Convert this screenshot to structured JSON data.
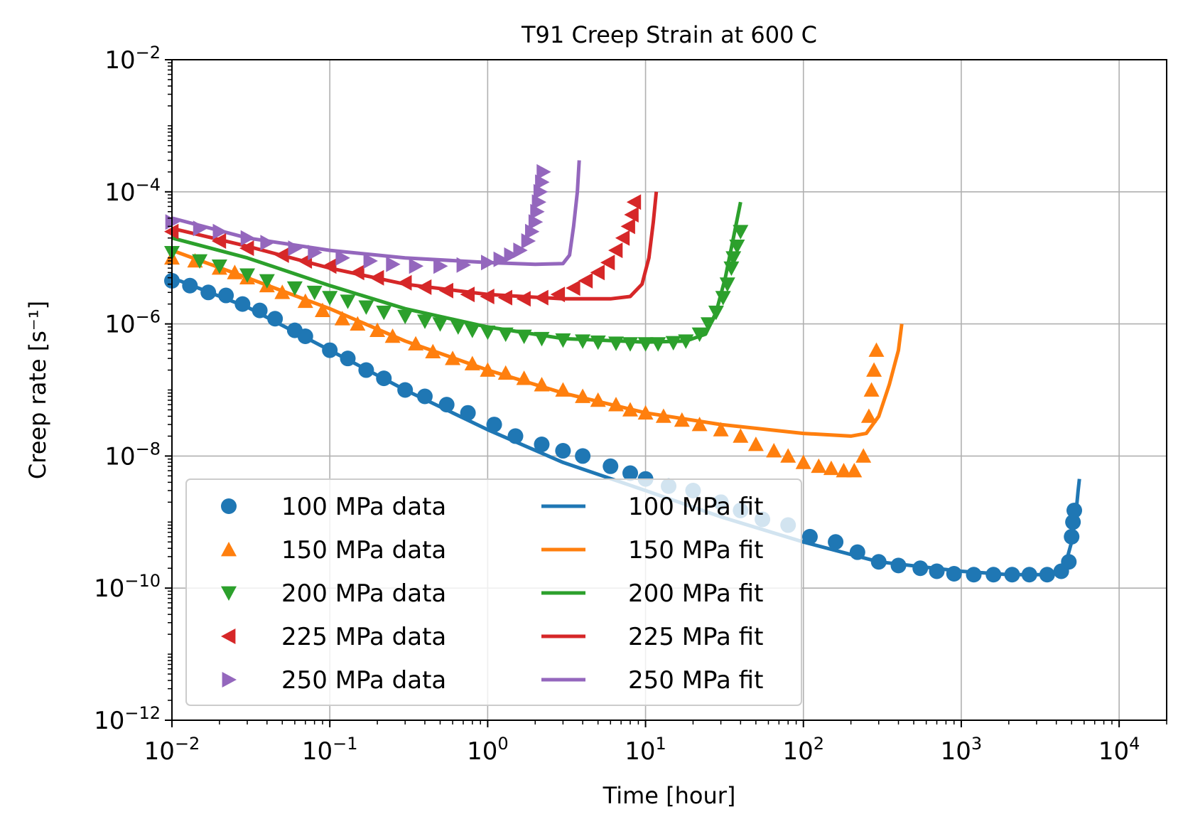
{
  "chart_data": {
    "type": "scatter",
    "title": "T91 Creep Strain at 600 C",
    "xlabel": "Time [hour]",
    "ylabel": "Creep rate [s⁻¹]",
    "xscale": "log",
    "yscale": "log",
    "xlim": [
      0.01,
      20000
    ],
    "ylim": [
      1e-12,
      0.01
    ],
    "grid": true,
    "legend_position": "lower-left",
    "x_ticks": [
      {
        "value": 0.01,
        "base": "10",
        "exp": "−2"
      },
      {
        "value": 0.1,
        "base": "10",
        "exp": "−1"
      },
      {
        "value": 1,
        "base": "10",
        "exp": "0"
      },
      {
        "value": 10,
        "base": "10",
        "exp": "1"
      },
      {
        "value": 100,
        "base": "10",
        "exp": "2"
      },
      {
        "value": 1000,
        "base": "10",
        "exp": "3"
      },
      {
        "value": 10000,
        "base": "10",
        "exp": "4"
      }
    ],
    "y_ticks": [
      {
        "value": 1e-12,
        "base": "10",
        "exp": "−12"
      },
      {
        "value": 1e-10,
        "base": "10",
        "exp": "−10"
      },
      {
        "value": 1e-08,
        "base": "10",
        "exp": "−8"
      },
      {
        "value": 1e-06,
        "base": "10",
        "exp": "−6"
      },
      {
        "value": 0.0001,
        "base": "10",
        "exp": "−4"
      },
      {
        "value": 0.01,
        "base": "10",
        "exp": "−2"
      }
    ],
    "series": [
      {
        "name": "100 MPa data",
        "kind": "data",
        "marker": "circle",
        "color": "#1f77b4",
        "points": [
          [
            0.01,
            4.5e-06
          ],
          [
            0.013,
            3.8e-06
          ],
          [
            0.017,
            3e-06
          ],
          [
            0.022,
            2.7e-06
          ],
          [
            0.028,
            2e-06
          ],
          [
            0.036,
            1.6e-06
          ],
          [
            0.045,
            1.2e-06
          ],
          [
            0.06,
            8e-07
          ],
          [
            0.07,
            6.5e-07
          ],
          [
            0.1,
            4e-07
          ],
          [
            0.13,
            3e-07
          ],
          [
            0.17,
            2e-07
          ],
          [
            0.22,
            1.5e-07
          ],
          [
            0.3,
            1e-07
          ],
          [
            0.4,
            8e-08
          ],
          [
            0.55,
            6e-08
          ],
          [
            0.75,
            4.5e-08
          ],
          [
            1.1,
            3e-08
          ],
          [
            1.5,
            2e-08
          ],
          [
            2.2,
            1.5e-08
          ],
          [
            3,
            1.2e-08
          ],
          [
            4,
            1e-08
          ],
          [
            6,
            7e-09
          ],
          [
            8,
            5.5e-09
          ],
          [
            10,
            4.5e-09
          ],
          [
            14,
            3.5e-09
          ],
          [
            20,
            3e-09
          ],
          [
            30,
            2e-09
          ],
          [
            40,
            1.5e-09
          ],
          [
            55,
            1.1e-09
          ],
          [
            80,
            9e-10
          ],
          [
            110,
            6e-10
          ],
          [
            160,
            5e-10
          ],
          [
            220,
            3.5e-10
          ],
          [
            300,
            2.5e-10
          ],
          [
            400,
            2.2e-10
          ],
          [
            550,
            2e-10
          ],
          [
            700,
            1.8e-10
          ],
          [
            900,
            1.65e-10
          ],
          [
            1200,
            1.6e-10
          ],
          [
            1600,
            1.6e-10
          ],
          [
            2100,
            1.6e-10
          ],
          [
            2700,
            1.6e-10
          ],
          [
            3500,
            1.6e-10
          ],
          [
            4300,
            1.8e-10
          ],
          [
            4800,
            2.5e-10
          ],
          [
            5000,
            6e-10
          ],
          [
            5100,
            1e-09
          ],
          [
            5200,
            1.5e-09
          ]
        ]
      },
      {
        "name": "150 MPa data",
        "kind": "data",
        "marker": "triangle-up",
        "color": "#ff7f0e",
        "points": [
          [
            0.01,
            1e-05
          ],
          [
            0.014,
            9e-06
          ],
          [
            0.02,
            7e-06
          ],
          [
            0.025,
            6e-06
          ],
          [
            0.03,
            5e-06
          ],
          [
            0.04,
            3.8e-06
          ],
          [
            0.05,
            3e-06
          ],
          [
            0.07,
            2.2e-06
          ],
          [
            0.09,
            1.6e-06
          ],
          [
            0.12,
            1.2e-06
          ],
          [
            0.15,
            1e-06
          ],
          [
            0.2,
            8e-07
          ],
          [
            0.25,
            6.5e-07
          ],
          [
            0.35,
            5e-07
          ],
          [
            0.45,
            3.8e-07
          ],
          [
            0.6,
            3e-07
          ],
          [
            0.8,
            2.5e-07
          ],
          [
            1,
            2e-07
          ],
          [
            1.3,
            1.8e-07
          ],
          [
            1.7,
            1.5e-07
          ],
          [
            2.2,
            1.2e-07
          ],
          [
            3,
            1e-07
          ],
          [
            4,
            8e-08
          ],
          [
            5,
            7e-08
          ],
          [
            6.5,
            6e-08
          ],
          [
            8,
            5e-08
          ],
          [
            10,
            4.5e-08
          ],
          [
            13,
            4e-08
          ],
          [
            17,
            3.5e-08
          ],
          [
            22,
            3e-08
          ],
          [
            30,
            2.5e-08
          ],
          [
            40,
            2e-08
          ],
          [
            50,
            1.5e-08
          ],
          [
            65,
            1.2e-08
          ],
          [
            80,
            1e-08
          ],
          [
            100,
            8e-09
          ],
          [
            125,
            7e-09
          ],
          [
            150,
            6.5e-09
          ],
          [
            180,
            6e-09
          ],
          [
            210,
            6e-09
          ],
          [
            240,
            1e-08
          ],
          [
            260,
            4e-08
          ],
          [
            270,
            1e-07
          ],
          [
            280,
            2e-07
          ],
          [
            290,
            4e-07
          ]
        ]
      },
      {
        "name": "200 MPa data",
        "kind": "data",
        "marker": "triangle-down",
        "color": "#2ca02c",
        "points": [
          [
            0.01,
            1.2e-05
          ],
          [
            0.015,
            9e-06
          ],
          [
            0.02,
            7.5e-06
          ],
          [
            0.03,
            5.5e-06
          ],
          [
            0.04,
            4.5e-06
          ],
          [
            0.06,
            3.5e-06
          ],
          [
            0.08,
            3e-06
          ],
          [
            0.1,
            2.5e-06
          ],
          [
            0.13,
            2.2e-06
          ],
          [
            0.17,
            1.8e-06
          ],
          [
            0.22,
            1.5e-06
          ],
          [
            0.3,
            1.3e-06
          ],
          [
            0.4,
            1.1e-06
          ],
          [
            0.5,
            1e-06
          ],
          [
            0.65,
            9e-07
          ],
          [
            0.8,
            8e-07
          ],
          [
            1,
            7.5e-07
          ],
          [
            1.3,
            7e-07
          ],
          [
            1.7,
            6.5e-07
          ],
          [
            2.2,
            6e-07
          ],
          [
            3,
            5.7e-07
          ],
          [
            4,
            5.5e-07
          ],
          [
            5,
            5.3e-07
          ],
          [
            6.5,
            5.1e-07
          ],
          [
            8,
            5e-07
          ],
          [
            10,
            5e-07
          ],
          [
            12,
            5e-07
          ],
          [
            15,
            5.2e-07
          ],
          [
            18,
            5.5e-07
          ],
          [
            22,
            7e-07
          ],
          [
            25,
            1e-06
          ],
          [
            28,
            1.5e-06
          ],
          [
            31,
            2.5e-06
          ],
          [
            33,
            4e-06
          ],
          [
            35,
            7e-06
          ],
          [
            36,
            1e-05
          ],
          [
            38,
            1.5e-05
          ],
          [
            40,
            2.5e-05
          ]
        ]
      },
      {
        "name": "225 MPa data",
        "kind": "data",
        "marker": "triangle-left",
        "color": "#d62728",
        "points": [
          [
            0.01,
            2.5e-05
          ],
          [
            0.02,
            1.8e-05
          ],
          [
            0.03,
            1.4e-05
          ],
          [
            0.05,
            1.1e-05
          ],
          [
            0.07,
            9e-06
          ],
          [
            0.1,
            7.5e-06
          ],
          [
            0.15,
            6e-06
          ],
          [
            0.2,
            5e-06
          ],
          [
            0.3,
            4.2e-06
          ],
          [
            0.4,
            3.6e-06
          ],
          [
            0.55,
            3.2e-06
          ],
          [
            0.75,
            2.8e-06
          ],
          [
            1,
            2.6e-06
          ],
          [
            1.3,
            2.5e-06
          ],
          [
            1.7,
            2.4e-06
          ],
          [
            2.2,
            2.5e-06
          ],
          [
            2.8,
            2.8e-06
          ],
          [
            3.5,
            3.5e-06
          ],
          [
            4.2,
            4.5e-06
          ],
          [
            5,
            6e-06
          ],
          [
            5.8,
            8.5e-06
          ],
          [
            6.5,
            1.3e-05
          ],
          [
            7.2,
            2e-05
          ],
          [
            7.8,
            3e-05
          ],
          [
            8.2,
            4.5e-05
          ],
          [
            8.5,
            7e-05
          ]
        ]
      },
      {
        "name": "250 MPa data",
        "kind": "data",
        "marker": "triangle-right",
        "color": "#9467bd",
        "points": [
          [
            0.01,
            3.5e-05
          ],
          [
            0.015,
            2.8e-05
          ],
          [
            0.02,
            2.5e-05
          ],
          [
            0.03,
            2e-05
          ],
          [
            0.04,
            1.7e-05
          ],
          [
            0.06,
            1.4e-05
          ],
          [
            0.08,
            1.2e-05
          ],
          [
            0.12,
            1e-05
          ],
          [
            0.18,
            9e-06
          ],
          [
            0.25,
            8e-06
          ],
          [
            0.35,
            7.5e-06
          ],
          [
            0.5,
            7.5e-06
          ],
          [
            0.7,
            7.8e-06
          ],
          [
            1,
            8.5e-06
          ],
          [
            1.2,
            9.5e-06
          ],
          [
            1.4,
            1.1e-05
          ],
          [
            1.6,
            1.3e-05
          ],
          [
            1.8,
            1.8e-05
          ],
          [
            1.9,
            2.5e-05
          ],
          [
            2,
            3.5e-05
          ],
          [
            2.05,
            5e-05
          ],
          [
            2.1,
            7e-05
          ],
          [
            2.15,
            0.0001
          ],
          [
            2.2,
            0.00014
          ],
          [
            2.25,
            0.0002
          ]
        ]
      },
      {
        "name": "100 MPa fit",
        "kind": "fit",
        "color": "#1f77b4",
        "points": [
          [
            0.01,
            5e-06
          ],
          [
            0.03,
            1.8e-06
          ],
          [
            0.1,
            4e-07
          ],
          [
            0.3,
            1e-07
          ],
          [
            1,
            2.5e-08
          ],
          [
            3,
            8e-09
          ],
          [
            10,
            3e-09
          ],
          [
            30,
            1.2e-09
          ],
          [
            100,
            5e-10
          ],
          [
            300,
            2.5e-10
          ],
          [
            1000,
            1.8e-10
          ],
          [
            2000,
            1.6e-10
          ],
          [
            3500,
            1.6e-10
          ],
          [
            4500,
            2e-10
          ],
          [
            5000,
            5e-10
          ],
          [
            5300,
            1.2e-09
          ],
          [
            5500,
            3e-09
          ],
          [
            5600,
            4.5e-09
          ]
        ]
      },
      {
        "name": "150 MPa fit",
        "kind": "fit",
        "color": "#ff7f0e",
        "points": [
          [
            0.01,
            1.3e-05
          ],
          [
            0.03,
            5e-06
          ],
          [
            0.1,
            1.7e-06
          ],
          [
            0.3,
            5.5e-07
          ],
          [
            1,
            2e-07
          ],
          [
            3,
            9e-08
          ],
          [
            10,
            4.5e-08
          ],
          [
            30,
            3e-08
          ],
          [
            100,
            2.2e-08
          ],
          [
            200,
            2e-08
          ],
          [
            250,
            2.2e-08
          ],
          [
            300,
            4e-08
          ],
          [
            350,
            1.2e-07
          ],
          [
            400,
            4e-07
          ],
          [
            420,
            1e-06
          ]
        ]
      },
      {
        "name": "200 MPa fit",
        "kind": "fit",
        "color": "#2ca02c",
        "points": [
          [
            0.01,
            2e-05
          ],
          [
            0.03,
            1e-05
          ],
          [
            0.1,
            3.8e-06
          ],
          [
            0.3,
            1.7e-06
          ],
          [
            1,
            9e-07
          ],
          [
            3,
            6e-07
          ],
          [
            10,
            5.3e-07
          ],
          [
            18,
            5.5e-07
          ],
          [
            24,
            7e-07
          ],
          [
            28,
            1.5e-06
          ],
          [
            32,
            5e-06
          ],
          [
            36,
            2e-05
          ],
          [
            40,
            7e-05
          ]
        ]
      },
      {
        "name": "225 MPa fit",
        "kind": "fit",
        "color": "#d62728",
        "points": [
          [
            0.01,
            2.8e-05
          ],
          [
            0.03,
            1.5e-05
          ],
          [
            0.1,
            7e-06
          ],
          [
            0.3,
            4e-06
          ],
          [
            1,
            2.8e-06
          ],
          [
            3,
            2.4e-06
          ],
          [
            6,
            2.4e-06
          ],
          [
            8,
            2.6e-06
          ],
          [
            9.5,
            4e-06
          ],
          [
            10.5,
            1e-05
          ],
          [
            11.2,
            3.5e-05
          ],
          [
            11.7,
            0.0001
          ]
        ]
      },
      {
        "name": "250 MPa fit",
        "kind": "fit",
        "color": "#9467bd",
        "points": [
          [
            0.01,
            4e-05
          ],
          [
            0.03,
            2e-05
          ],
          [
            0.1,
            1.3e-05
          ],
          [
            0.3,
            1e-05
          ],
          [
            1,
            8.5e-06
          ],
          [
            2,
            8e-06
          ],
          [
            3,
            8.2e-06
          ],
          [
            3.3,
            1.1e-05
          ],
          [
            3.5,
            3e-05
          ],
          [
            3.7,
            0.0001
          ],
          [
            3.8,
            0.0003
          ]
        ]
      }
    ]
  }
}
